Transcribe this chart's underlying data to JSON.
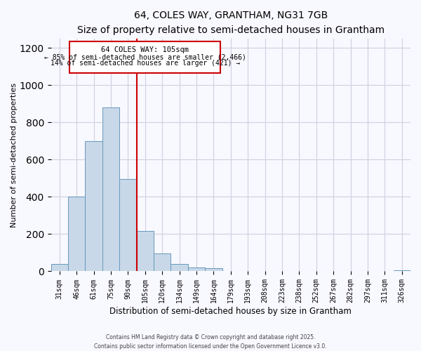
{
  "title": "64, COLES WAY, GRANTHAM, NG31 7GB",
  "subtitle": "Size of property relative to semi-detached houses in Grantham",
  "xlabel": "Distribution of semi-detached houses by size in Grantham",
  "ylabel": "Number of semi-detached properties",
  "bar_labels": [
    "31sqm",
    "46sqm",
    "61sqm",
    "75sqm",
    "90sqm",
    "105sqm",
    "120sqm",
    "134sqm",
    "149sqm",
    "164sqm",
    "179sqm",
    "193sqm",
    "208sqm",
    "223sqm",
    "238sqm",
    "252sqm",
    "267sqm",
    "282sqm",
    "297sqm",
    "311sqm",
    "326sqm"
  ],
  "bar_values": [
    40,
    400,
    700,
    880,
    495,
    215,
    95,
    40,
    20,
    15,
    0,
    0,
    0,
    0,
    0,
    0,
    0,
    0,
    0,
    0,
    5
  ],
  "bar_color": "#c8d8e8",
  "bar_edge_color": "#6699bb",
  "vline_index": 5,
  "vline_color": "#cc0000",
  "annotation_title": "64 COLES WAY: 105sqm",
  "annotation_line1": "← 85% of semi-detached houses are smaller (2,466)",
  "annotation_line2": "14% of semi-detached houses are larger (421) →",
  "box_edge_color": "#cc0000",
  "ylim": [
    0,
    1250
  ],
  "yticks": [
    0,
    200,
    400,
    600,
    800,
    1000,
    1200
  ],
  "footer1": "Contains HM Land Registry data © Crown copyright and database right 2025.",
  "footer2": "Contains public sector information licensed under the Open Government Licence v3.0.",
  "bg_color": "#f8f8ff",
  "grid_color": "#d0d0e0"
}
